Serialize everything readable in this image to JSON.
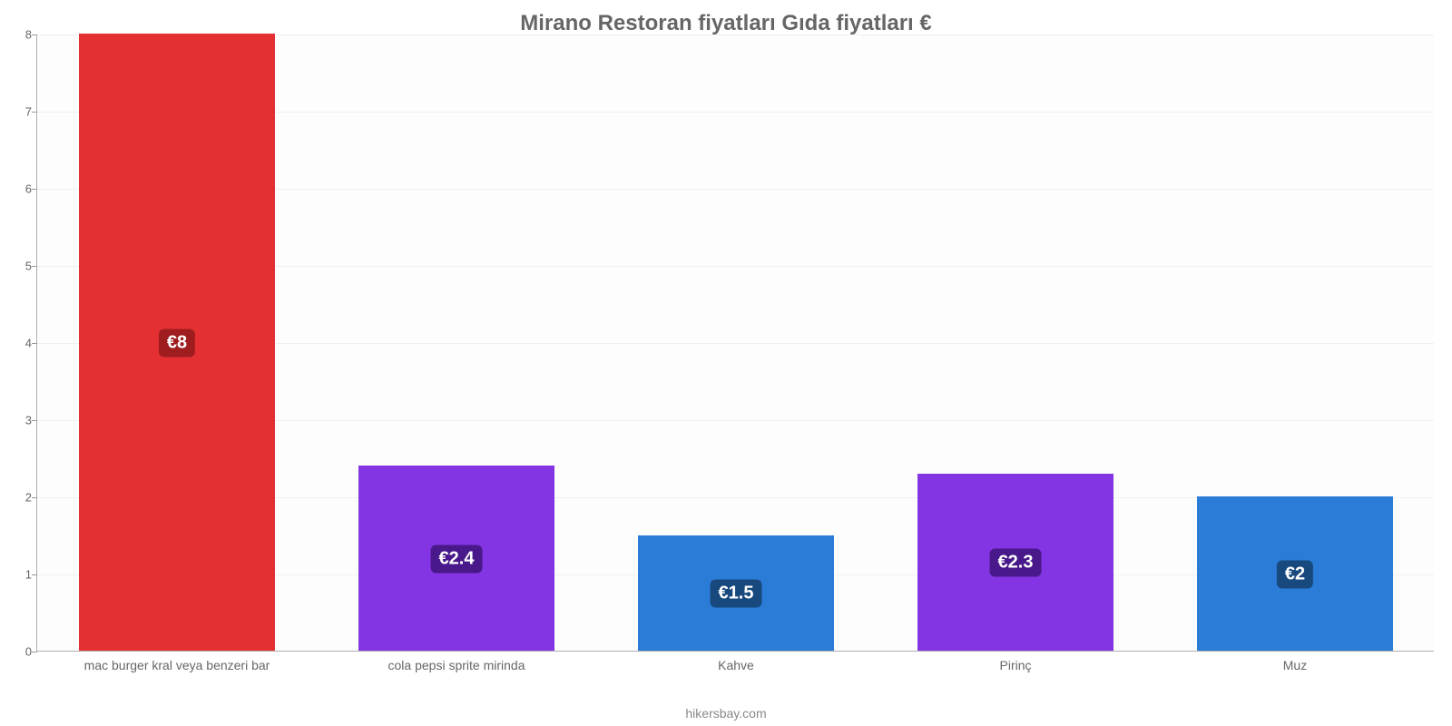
{
  "chart": {
    "type": "bar",
    "title": "Mirano Restoran fiyatları Gıda fiyatları €",
    "title_fontsize": 24,
    "title_color": "#666666",
    "footer": "hikersbay.com",
    "footer_color": "#888888",
    "background_color": "#ffffff",
    "plot_background_color": "#fdfdfd",
    "grid_color": "#f0f0f0",
    "axis_color": "#b0b0b0",
    "ylim": [
      0,
      8
    ],
    "yticks": [
      0,
      1,
      2,
      3,
      4,
      5,
      6,
      7,
      8
    ],
    "ytick_fontsize": 13,
    "label_fontsize": 14,
    "label_color": "#666666",
    "badge_fontsize": 20,
    "bar_width_pct": 70,
    "bars": [
      {
        "category": "mac burger kral veya benzeri bar",
        "value": 8,
        "display": "€8",
        "color": "#e53033",
        "badge_color": "#9f1d1f"
      },
      {
        "category": "cola pepsi sprite mirinda",
        "value": 2.4,
        "display": "€2.4",
        "color": "#8335e3",
        "badge_color": "#49188a"
      },
      {
        "category": "Kahve",
        "value": 1.5,
        "display": "€1.5",
        "color": "#2a7cd6",
        "badge_color": "#17497f"
      },
      {
        "category": "Pirinç",
        "value": 2.3,
        "display": "€2.3",
        "color": "#8335e3",
        "badge_color": "#49188a"
      },
      {
        "category": "Muz",
        "value": 2,
        "display": "€2",
        "color": "#2a7cd6",
        "badge_color": "#17497f"
      }
    ]
  }
}
